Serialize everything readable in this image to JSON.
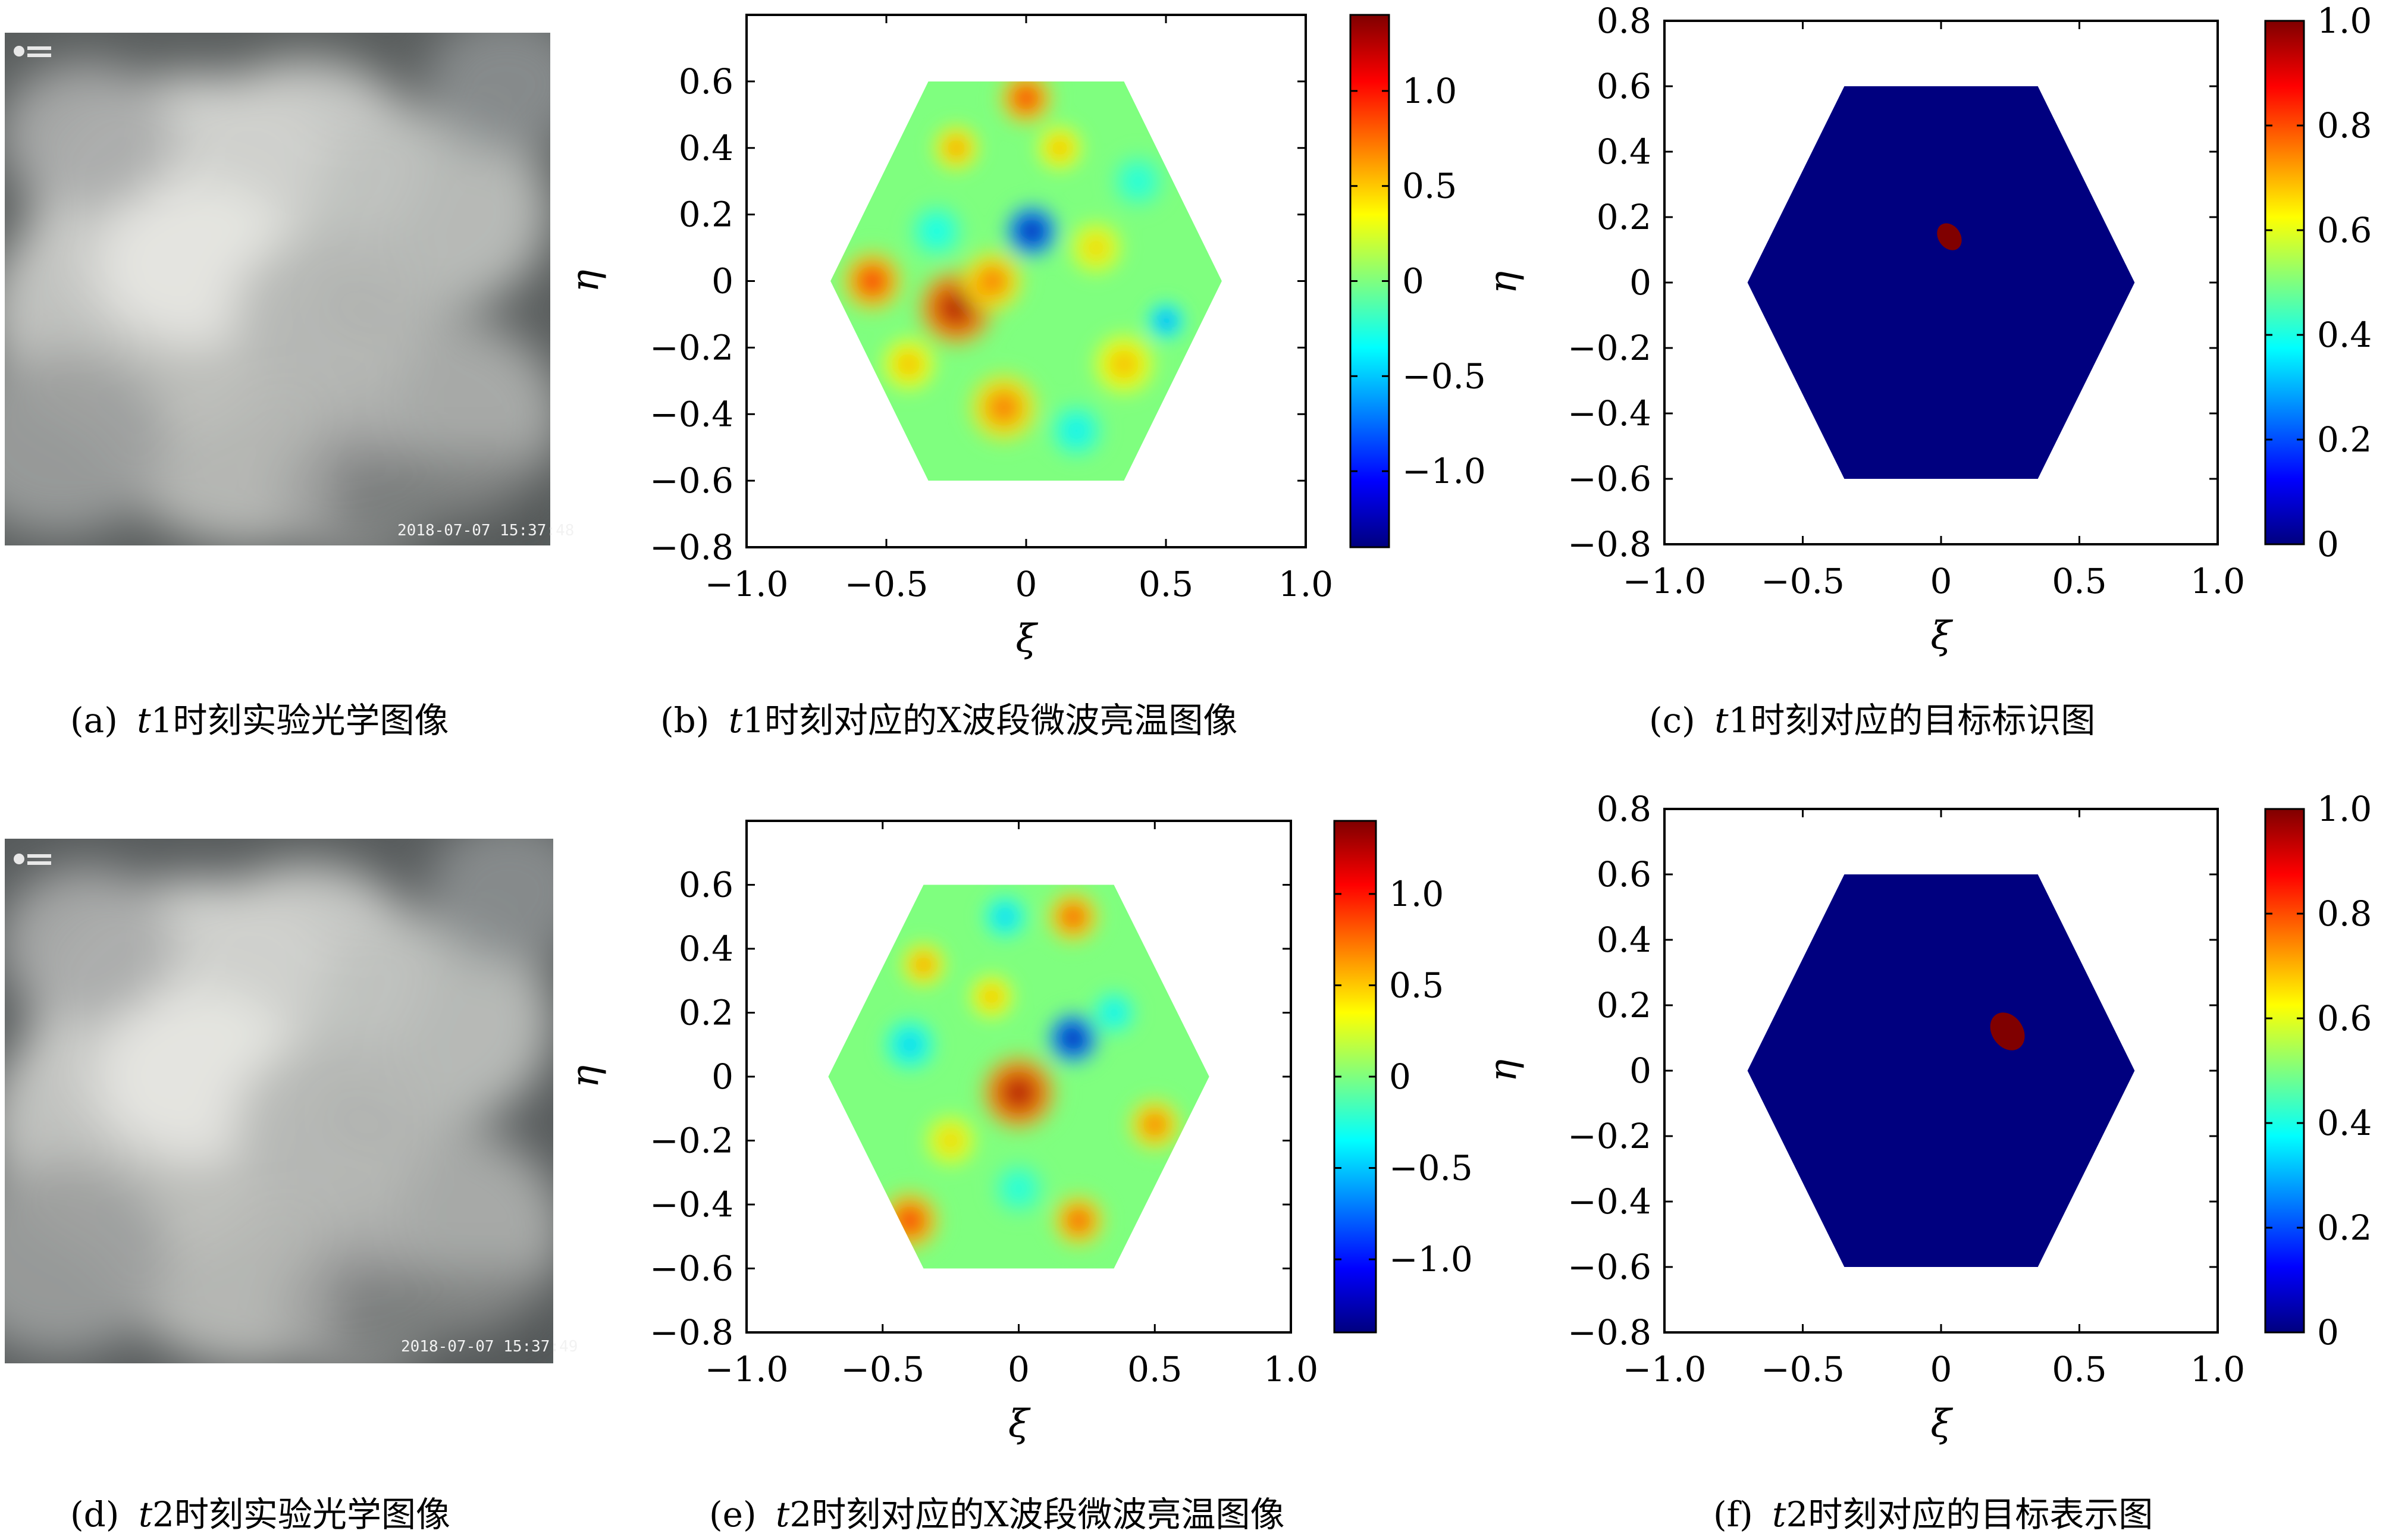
{
  "chart_data": [
    {
      "panel": "a",
      "type": "photo",
      "timestamp": "2018-07-07 15:37:48",
      "caption": {
        "prefix": "(a)",
        "var": "t",
        "rest": "1时刻实验光学图像"
      }
    },
    {
      "panel": "b",
      "type": "heatmap",
      "xlabel": "ξ",
      "ylabel": "η",
      "xlim": [
        -1.0,
        1.0
      ],
      "ylim": [
        -0.8,
        0.8
      ],
      "xticks": [
        "−1.0",
        "−0.5",
        "0",
        "0.5",
        "1.0"
      ],
      "yticks": [
        "0.6",
        "0.4",
        "0.2",
        "0",
        "−0.2",
        "−0.4",
        "−0.6",
        "−0.8"
      ],
      "clim": [
        -1.4,
        1.4
      ],
      "colorbar_ticks": [
        {
          "value": 1.0,
          "label": "1.0"
        },
        {
          "value": 0.5,
          "label": "0.5"
        },
        {
          "value": 0,
          "label": "0"
        },
        {
          "value": -0.5,
          "label": "−0.5"
        },
        {
          "value": -1.0,
          "label": "−1.0"
        }
      ],
      "hexagon_halfwidth": 0.7,
      "hexagon_halfheight": 0.6,
      "blobs": [
        {
          "x": -0.25,
          "y": -0.08,
          "amp": 1.3,
          "r": 0.1
        },
        {
          "x": -0.55,
          "y": 0.0,
          "amp": 1.0,
          "r": 0.08
        },
        {
          "x": -0.12,
          "y": 0.0,
          "amp": 0.8,
          "r": 0.08
        },
        {
          "x": 0.02,
          "y": 0.15,
          "amp": -1.3,
          "r": 0.07
        },
        {
          "x": 0.5,
          "y": -0.12,
          "amp": -0.7,
          "r": 0.05
        },
        {
          "x": 0.0,
          "y": 0.55,
          "amp": 1.0,
          "r": 0.07
        },
        {
          "x": -0.25,
          "y": 0.4,
          "amp": 0.7,
          "r": 0.06
        },
        {
          "x": 0.12,
          "y": 0.4,
          "amp": 0.6,
          "r": 0.06
        },
        {
          "x": -0.08,
          "y": -0.38,
          "amp": 0.8,
          "r": 0.09
        },
        {
          "x": -0.42,
          "y": -0.25,
          "amp": 0.6,
          "r": 0.07
        },
        {
          "x": 0.35,
          "y": -0.25,
          "amp": 0.6,
          "r": 0.08
        },
        {
          "x": 0.25,
          "y": 0.1,
          "amp": 0.5,
          "r": 0.07
        },
        {
          "x": 0.18,
          "y": -0.45,
          "amp": -0.4,
          "r": 0.07
        },
        {
          "x": -0.32,
          "y": 0.15,
          "amp": -0.35,
          "r": 0.07
        },
        {
          "x": 0.4,
          "y": 0.3,
          "amp": -0.3,
          "r": 0.07
        }
      ],
      "caption": {
        "prefix": "(b)",
        "var": "t",
        "rest": "1时刻对应的X波段微波亮温图像"
      }
    },
    {
      "panel": "c",
      "type": "heatmap",
      "xlabel": "ξ",
      "ylabel": "η",
      "xlim": [
        -1.0,
        1.0
      ],
      "ylim": [
        -0.8,
        0.8
      ],
      "xticks": [
        "−1.0",
        "−0.5",
        "0",
        "0.5",
        "1.0"
      ],
      "yticks": [
        "0.8",
        "0.6",
        "0.4",
        "0.2",
        "0",
        "−0.2",
        "−0.4",
        "−0.6",
        "−0.8"
      ],
      "clim": [
        0,
        1.0
      ],
      "colorbar_ticks": [
        {
          "value": 1.0,
          "label": "1.0"
        },
        {
          "value": 0.8,
          "label": "0.8"
        },
        {
          "value": 0.6,
          "label": "0.6"
        },
        {
          "value": 0.4,
          "label": "0.4"
        },
        {
          "value": 0.2,
          "label": "0.2"
        },
        {
          "value": 0,
          "label": "0"
        }
      ],
      "hexagon_halfwidth": 0.7,
      "hexagon_halfheight": 0.6,
      "background_value": 0,
      "target": {
        "value": 1.0,
        "center": [
          0.03,
          0.14
        ],
        "radius": 0.05
      },
      "caption": {
        "prefix": "(c)",
        "var": "t",
        "rest": "1时刻对应的目标标识图"
      }
    },
    {
      "panel": "d",
      "type": "photo",
      "timestamp": "2018-07-07 15:37:49",
      "caption": {
        "prefix": "(d)",
        "var": "t",
        "rest": "2时刻实验光学图像"
      }
    },
    {
      "panel": "e",
      "type": "heatmap",
      "xlabel": "ξ",
      "ylabel": "η",
      "xlim": [
        -1.0,
        1.0
      ],
      "ylim": [
        -0.8,
        0.8
      ],
      "xticks": [
        "−1.0",
        "−0.5",
        "0",
        "0.5",
        "1.0"
      ],
      "yticks": [
        "0.6",
        "0.4",
        "0.2",
        "0",
        "−0.2",
        "−0.4",
        "−0.6",
        "−0.8"
      ],
      "clim": [
        -1.4,
        1.4
      ],
      "colorbar_ticks": [
        {
          "value": 1.0,
          "label": "1.0"
        },
        {
          "value": 0.5,
          "label": "0.5"
        },
        {
          "value": 0,
          "label": "0"
        },
        {
          "value": -0.5,
          "label": "−0.5"
        },
        {
          "value": -1.0,
          "label": "−1.0"
        }
      ],
      "hexagon_halfwidth": 0.7,
      "hexagon_halfheight": 0.6,
      "blobs": [
        {
          "x": 0.0,
          "y": -0.05,
          "amp": 1.3,
          "r": 0.1
        },
        {
          "x": 0.2,
          "y": 0.12,
          "amp": -1.3,
          "r": 0.07
        },
        {
          "x": -0.4,
          "y": -0.45,
          "amp": 1.0,
          "r": 0.08
        },
        {
          "x": 0.22,
          "y": -0.45,
          "amp": 0.9,
          "r": 0.07
        },
        {
          "x": 0.5,
          "y": -0.15,
          "amp": 0.8,
          "r": 0.07
        },
        {
          "x": 0.2,
          "y": 0.5,
          "amp": 0.9,
          "r": 0.07
        },
        {
          "x": -0.35,
          "y": 0.35,
          "amp": 0.7,
          "r": 0.06
        },
        {
          "x": -0.1,
          "y": 0.25,
          "amp": 0.6,
          "r": 0.06
        },
        {
          "x": -0.05,
          "y": 0.5,
          "amp": -0.5,
          "r": 0.06
        },
        {
          "x": -0.4,
          "y": 0.1,
          "amp": -0.5,
          "r": 0.07
        },
        {
          "x": 0.35,
          "y": 0.2,
          "amp": -0.4,
          "r": 0.06
        },
        {
          "x": -0.25,
          "y": -0.2,
          "amp": 0.5,
          "r": 0.07
        },
        {
          "x": 0.0,
          "y": -0.35,
          "amp": -0.3,
          "r": 0.07
        }
      ],
      "caption": {
        "prefix": "(e)",
        "var": "t",
        "rest": "2时刻对应的X波段微波亮温图像"
      }
    },
    {
      "panel": "f",
      "type": "heatmap",
      "xlabel": "ξ",
      "ylabel": "η",
      "xlim": [
        -1.0,
        1.0
      ],
      "ylim": [
        -0.8,
        0.8
      ],
      "xticks": [
        "−1.0",
        "−0.5",
        "0",
        "0.5",
        "1.0"
      ],
      "yticks": [
        "0.8",
        "0.6",
        "0.4",
        "0.2",
        "0",
        "−0.2",
        "−0.4",
        "−0.6",
        "−0.8"
      ],
      "clim": [
        0,
        1.0
      ],
      "colorbar_ticks": [
        {
          "value": 1.0,
          "label": "1.0"
        },
        {
          "value": 0.8,
          "label": "0.8"
        },
        {
          "value": 0.6,
          "label": "0.6"
        },
        {
          "value": 0.4,
          "label": "0.4"
        },
        {
          "value": 0.2,
          "label": "0.2"
        },
        {
          "value": 0,
          "label": "0"
        }
      ],
      "hexagon_halfwidth": 0.7,
      "hexagon_halfheight": 0.6,
      "background_value": 0,
      "target": {
        "value": 1.0,
        "center": [
          0.24,
          0.12
        ],
        "radius": 0.07
      },
      "caption": {
        "prefix": "(f)",
        "var": "t",
        "rest": "2时刻对应的目标表示图"
      }
    }
  ],
  "colors": {
    "target_low": "#00007f",
    "target_high": "#800000",
    "jet": [
      "#00007f",
      "#0000ff",
      "#007fff",
      "#00ffff",
      "#7fff7f",
      "#ffff00",
      "#ff7f00",
      "#ff0000",
      "#7f0000"
    ]
  }
}
